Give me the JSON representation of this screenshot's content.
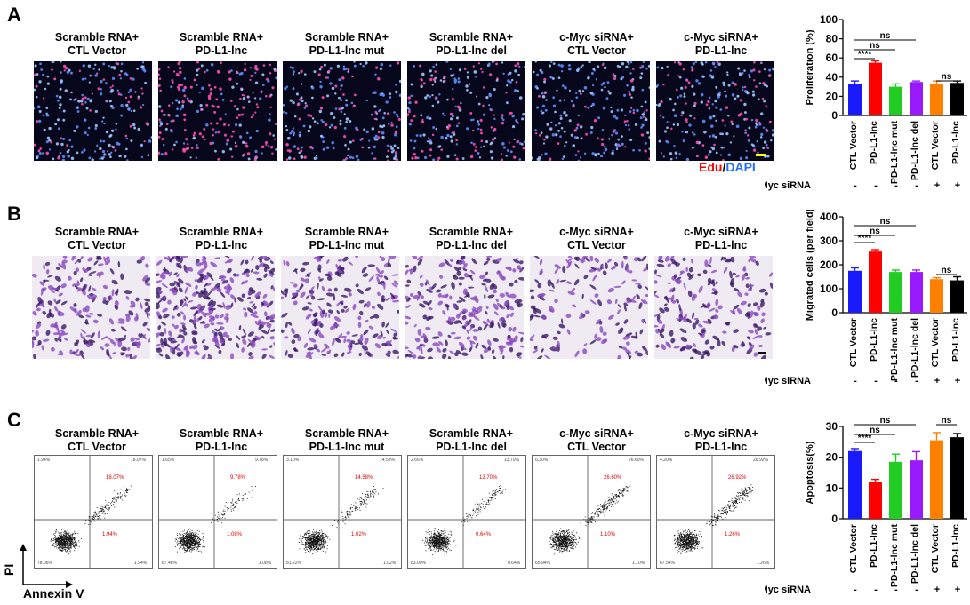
{
  "panels": {
    "A": {
      "letter": "A",
      "captions": [
        [
          "Scramble RNA+",
          "CTL Vector"
        ],
        [
          "Scramble RNA+",
          "PD-L1-lnc"
        ],
        [
          "Scramble RNA+",
          "PD-L1-lnc mut"
        ],
        [
          "Scramble RNA+",
          "PD-L1-lnc del"
        ],
        [
          "c-Myc siRNA+",
          "CTL Vector"
        ],
        [
          "c-Myc siRNA+",
          "PD-L1-lnc"
        ]
      ],
      "stain_edu": "Edu",
      "stain_sep": "/",
      "stain_dapi": "DAPI"
    },
    "B": {
      "letter": "B",
      "captions": [
        [
          "Scramble RNA+",
          "CTL Vector"
        ],
        [
          "Scramble RNA+",
          "PD-L1-lnc"
        ],
        [
          "Scramble RNA+",
          "PD-L1-lnc mut"
        ],
        [
          "Scramble RNA+",
          "PD-L1-lnc del"
        ],
        [
          "c-Myc siRNA+",
          "CTL Vector"
        ],
        [
          "c-Myc siRNA+",
          "PD-L1-lnc"
        ]
      ]
    },
    "C": {
      "letter": "C",
      "captions": [
        [
          "Scramble RNA+",
          "CTL Vector"
        ],
        [
          "Scramble RNA+",
          "PD-L1-lnc"
        ],
        [
          "Scramble RNA+",
          "PD-L1-lnc mut"
        ],
        [
          "Scramble RNA+",
          "PD-L1-lnc del"
        ],
        [
          "c-Myc siRNA+",
          "CTL Vector"
        ],
        [
          "c-Myc siRNA+",
          "PD-L1-lnc"
        ]
      ],
      "flow": [
        {
          "ul": "1.94%",
          "ur": "18.07%",
          "ll": "78.06%",
          "lr": "1.94%",
          "ur_red": "18.07%",
          "lr_red": "1.94%"
        },
        {
          "ul": "1.65%",
          "ur": "9.78%",
          "ll": "87.46%",
          "lr": "1.08%",
          "ur_red": "9.78%",
          "lr_red": "1.08%"
        },
        {
          "ul": "3.10%",
          "ur": "14.58%",
          "ll": "81.22%",
          "lr": "1.02%",
          "ur_red": "14.58%",
          "lr_red": "1.02%"
        },
        {
          "ul": "2.66%",
          "ur": "13.70%",
          "ll": "83.00%",
          "lr": "0.64%",
          "ur_red": "13.70%",
          "lr_red": "0.64%"
        },
        {
          "ul": "6.30%",
          "ur": "26.60%",
          "ll": "65.94%",
          "lr": "1.10%",
          "ur_red": "26.60%",
          "lr_red": "1.10%"
        },
        {
          "ul": "4.20%",
          "ur": "26.92%",
          "ll": "67.54%",
          "lr": "1.26%",
          "ur_red": "26.92%",
          "lr_red": "1.26%"
        }
      ],
      "axis_pi": "PI",
      "axis_annexin": "Annexin V"
    }
  },
  "colors": {
    "bars": [
      "#1a1aff",
      "#ff0000",
      "#22cc22",
      "#9a1aff",
      "#ff8000",
      "#000000"
    ],
    "edu_red": "#ff0000",
    "dapi_blue": "#1f6fff"
  },
  "chart_data": [
    {
      "type": "bar",
      "ylabel": "Proliferation (%)",
      "ylim": [
        0,
        100
      ],
      "yticks": [
        0,
        20,
        40,
        60,
        80,
        100
      ],
      "categories": [
        "CTL Vector",
        "PD-L1-lnc",
        "PD-L1-lnc mut",
        "PD-L1-lnc del",
        "CTL Vector",
        "PD-L1-lnc"
      ],
      "values": [
        33,
        55,
        30,
        35,
        33,
        34
      ],
      "errors": [
        3,
        2,
        3,
        1,
        3,
        2
      ],
      "sirna_label": "c-Myc siRNA",
      "sirna_marks": [
        "-",
        "-",
        "-",
        "-",
        "+",
        "+"
      ],
      "significance": [
        {
          "from": 0,
          "to": 1,
          "text": "****"
        },
        {
          "from": 0,
          "to": 2,
          "text": "ns"
        },
        {
          "from": 0,
          "to": 3,
          "text": "ns"
        },
        {
          "from": 4,
          "to": 5,
          "text": "ns"
        }
      ]
    },
    {
      "type": "bar",
      "ylabel": "Migrated cells (per field)",
      "ylim": [
        0,
        400
      ],
      "yticks": [
        0,
        100,
        200,
        300,
        400
      ],
      "categories": [
        "CTL Vector",
        "PD-L1-lnc",
        "PD-L1-lnc mut",
        "PD-L1-lnc del",
        "CTL Vector",
        "PD-L1-lnc"
      ],
      "values": [
        175,
        255,
        170,
        170,
        140,
        135
      ],
      "errors": [
        12,
        8,
        8,
        8,
        6,
        15
      ],
      "sirna_label": "c-Myc siRNA",
      "sirna_marks": [
        "-",
        "-",
        "-",
        "-",
        "+",
        "+"
      ],
      "significance": [
        {
          "from": 0,
          "to": 1,
          "text": "****"
        },
        {
          "from": 0,
          "to": 2,
          "text": "ns"
        },
        {
          "from": 0,
          "to": 3,
          "text": "ns"
        },
        {
          "from": 4,
          "to": 5,
          "text": "ns"
        }
      ]
    },
    {
      "type": "bar",
      "ylabel": "Apoptosis(%)",
      "ylim": [
        0,
        30
      ],
      "yticks": [
        0,
        10,
        20,
        30
      ],
      "categories": [
        "CTL Vector",
        "PD-L1-lnc",
        "PD-L1-lnc mut",
        "PD-L1-lnc del",
        "CTL Vector",
        "PD-L1-lnc"
      ],
      "values": [
        22,
        12,
        18.5,
        19,
        25.5,
        26.5
      ],
      "errors": [
        0.8,
        0.8,
        2.5,
        2.8,
        2.5,
        1.2
      ],
      "sirna_label": "c-Myc siRNA",
      "sirna_marks": [
        "-",
        "-",
        "-",
        "-",
        "+",
        "+"
      ],
      "significance": [
        {
          "from": 0,
          "to": 1,
          "text": "****"
        },
        {
          "from": 0,
          "to": 2,
          "text": "ns"
        },
        {
          "from": 0,
          "to": 3,
          "text": "ns"
        },
        {
          "from": 4,
          "to": 5,
          "text": "ns"
        }
      ]
    }
  ]
}
